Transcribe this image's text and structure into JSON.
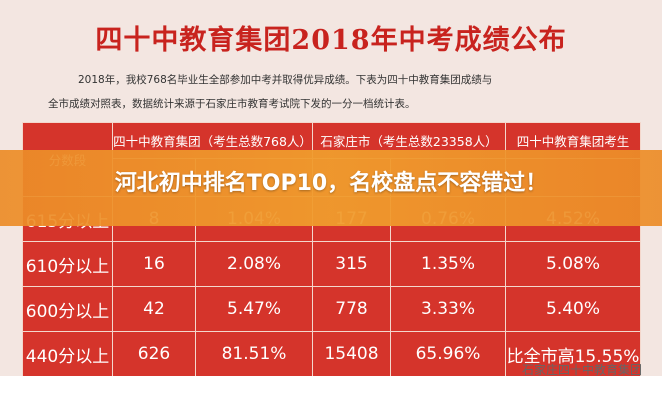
{
  "header": {
    "title": "四十中教育集团2018年中考成绩公布",
    "paragraph": [
      "2018年，我校768名毕业生全部参加中考并取得优异成绩。下表为四十中教育集团成绩与",
      "全市成绩对照表，数据统计来源于石家庄市教育考试院下发的一分一档统计表。"
    ]
  },
  "table": {
    "header": [
      "分数段",
      "四十中教育集团（考生总数768人）",
      "石家庄市（考生总数23358人）",
      "四十中教育集团考生"
    ],
    "rows": [
      [
        "615分以上",
        "8",
        "1.04%",
        "177",
        "0.76%",
        "4.52%"
      ],
      [
        "610分以上",
        "16",
        "2.08%",
        "315",
        "1.35%",
        "5.08%"
      ],
      [
        "600分以上",
        "42",
        "5.47%",
        "778",
        "3.33%",
        "5.40%"
      ],
      [
        "440分以上",
        "626",
        "81.51%",
        "15408",
        "65.96%",
        "比全市高15.55%"
      ]
    ]
  },
  "banner": "河北初中排名TOP10，名校盘点不容错过！",
  "watermark": "石家庄四十中教育集团"
}
